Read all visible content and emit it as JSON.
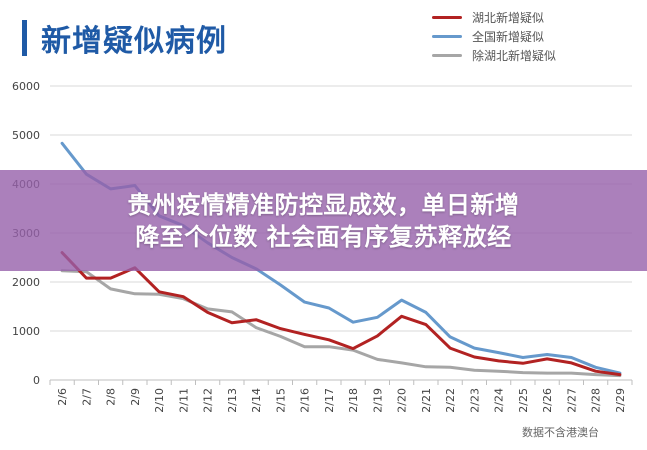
{
  "title": "新增疑似病例",
  "banner": {
    "line1": "贵州疫情精准防控显成效，单日新增",
    "line2": "降至个位数 社会面有序复苏释放经"
  },
  "source_note": "数据不含港澳台",
  "colors": {
    "hubei": "#b22222",
    "national": "#6699cc",
    "outside_hubei": "#a6a6a6",
    "title": "#1f5aa6",
    "banner": "#9660aa"
  },
  "chart_data": {
    "type": "line",
    "title": "新增疑似病例",
    "x": [
      "2/6",
      "2/7",
      "2/8",
      "2/9",
      "2/10",
      "2/11",
      "2/12",
      "2/13",
      "2/14",
      "2/15",
      "2/16",
      "2/17",
      "2/18",
      "2/19",
      "2/20",
      "2/21",
      "2/22",
      "2/23",
      "2/24",
      "2/25",
      "2/26",
      "2/27",
      "2/28",
      "2/29"
    ],
    "ylim": [
      0,
      6000
    ],
    "yticks": [
      0,
      1000,
      2000,
      3000,
      4000,
      5000,
      6000
    ],
    "grid": true,
    "legend_position": "top-right",
    "series": [
      {
        "name": "湖北新增疑似",
        "color": "#b22222",
        "values": [
          2600,
          2080,
          2080,
          2290,
          1800,
          1700,
          1380,
          1170,
          1230,
          1050,
          930,
          820,
          640,
          900,
          1300,
          1130,
          650,
          470,
          390,
          340,
          430,
          350,
          180,
          110
        ]
      },
      {
        "name": "全国新增疑似",
        "color": "#6699cc",
        "values": [
          4830,
          4200,
          3900,
          3970,
          3350,
          3150,
          2800,
          2500,
          2270,
          1940,
          1590,
          1470,
          1180,
          1280,
          1630,
          1380,
          880,
          650,
          560,
          460,
          520,
          460,
          260,
          140
        ]
      },
      {
        "name": "除湖北新增疑似",
        "color": "#a6a6a6",
        "values": [
          2230,
          2210,
          1860,
          1760,
          1750,
          1660,
          1450,
          1390,
          1070,
          890,
          680,
          680,
          610,
          420,
          350,
          270,
          260,
          200,
          180,
          150,
          140,
          140,
          110,
          90
        ]
      }
    ]
  }
}
